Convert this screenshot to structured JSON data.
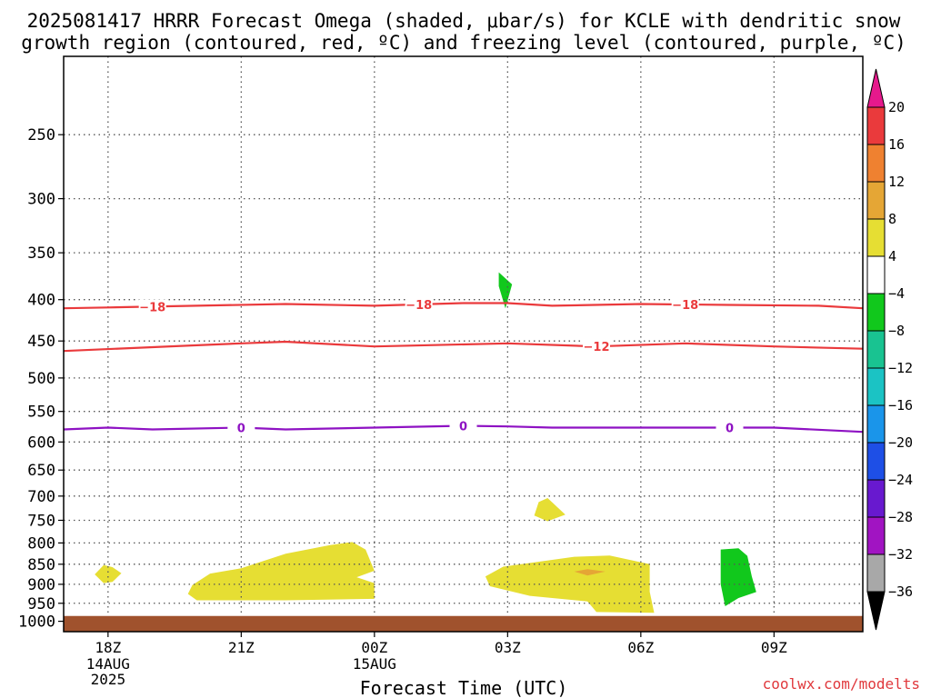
{
  "chart_data": {
    "type": "heatmap",
    "title_lines": [
      "2025081417 HRRR Forecast Omega (shaded, μbar/s) for KCLE with dendritic snow",
      "growth region (contoured, red, ºC) and freezing level (contoured, purple, ºC)"
    ],
    "xlabel": "Forecast Time (UTC)",
    "credit": "coolwx.com/modelts",
    "x_range_hours": [
      -1,
      17
    ],
    "y_range_hpa": [
      200,
      1030
    ],
    "y_ticks": [
      250,
      300,
      350,
      400,
      450,
      500,
      550,
      600,
      650,
      700,
      750,
      800,
      850,
      900,
      950,
      1000
    ],
    "x_ticks": [
      {
        "hour": 0,
        "label": "18Z",
        "sub": [
          "14AUG",
          "2025"
        ]
      },
      {
        "hour": 3,
        "label": "21Z",
        "sub": []
      },
      {
        "hour": 6,
        "label": "00Z",
        "sub": [
          "15AUG"
        ]
      },
      {
        "hour": 9,
        "label": "03Z",
        "sub": []
      },
      {
        "hour": 12,
        "label": "06Z",
        "sub": []
      },
      {
        "hour": 15,
        "label": "09Z",
        "sub": []
      }
    ],
    "grid": true,
    "ground_level_hpa": 985,
    "ground_color": "#a0522d",
    "colorbar": {
      "labels": [
        "20",
        "16",
        "12",
        "8",
        "4",
        "−4",
        "−8",
        "−12",
        "−16",
        "−20",
        "−24",
        "−28",
        "−32",
        "−36"
      ],
      "colors": [
        "#ea3a3c",
        "#ef8130",
        "#e5a635",
        "#e6de33",
        "#ffffff",
        "#11c81c",
        "#19c391",
        "#1bc3c4",
        "#1a95ea",
        "#1e4fe6",
        "#6819cf",
        "#a114c2",
        "#a8a8a8"
      ],
      "top_triangle_color": "#e6198c",
      "bottom_triangle_color": "#000000"
    },
    "contours": [
      {
        "label": "−18",
        "color": "#ea3a3c",
        "points": [
          [
            -1,
            410
          ],
          [
            0,
            409
          ],
          [
            2,
            407
          ],
          [
            4,
            405
          ],
          [
            6,
            407
          ],
          [
            8,
            404
          ],
          [
            9,
            404
          ],
          [
            10,
            407
          ],
          [
            12,
            405
          ],
          [
            14,
            406
          ],
          [
            16,
            407
          ],
          [
            17,
            410
          ]
        ],
        "label_hours": [
          1,
          7,
          13
        ]
      },
      {
        "label": "−12",
        "color": "#ea3a3c",
        "points": [
          [
            -1,
            463
          ],
          [
            1,
            458
          ],
          [
            3,
            453
          ],
          [
            4,
            451
          ],
          [
            6,
            457
          ],
          [
            9,
            453
          ],
          [
            11,
            457
          ],
          [
            13,
            453
          ],
          [
            15,
            457
          ],
          [
            17,
            460
          ]
        ],
        "label_hours": [
          11
        ]
      },
      {
        "label": "0",
        "color": "#8e12c3",
        "points": [
          [
            -1,
            579
          ],
          [
            0,
            576
          ],
          [
            1,
            579
          ],
          [
            3,
            576
          ],
          [
            4,
            579
          ],
          [
            6,
            576
          ],
          [
            8,
            573
          ],
          [
            9,
            574
          ],
          [
            10,
            576
          ],
          [
            12,
            576
          ],
          [
            15,
            576
          ],
          [
            17,
            583
          ]
        ],
        "label_hours": [
          3,
          8,
          14
        ]
      }
    ],
    "omega_regions": [
      {
        "value_range": [
          4,
          8
        ],
        "color": "#e6de33",
        "points": [
          [
            -0.3,
            875
          ],
          [
            -0.1,
            852
          ],
          [
            0.1,
            857
          ],
          [
            0.3,
            872
          ],
          [
            0.1,
            894
          ],
          [
            -0.1,
            897
          ]
        ]
      },
      {
        "value_range": [
          4,
          8
        ],
        "color": "#e6de33",
        "points": [
          [
            1.9,
            902
          ],
          [
            2.3,
            873
          ],
          [
            3,
            860
          ],
          [
            4,
            825
          ],
          [
            5,
            805
          ],
          [
            5.5,
            798
          ],
          [
            5.8,
            815
          ],
          [
            6,
            866
          ],
          [
            5.6,
            882
          ],
          [
            6,
            897
          ],
          [
            6,
            938
          ],
          [
            4,
            942
          ],
          [
            2,
            942
          ],
          [
            1.8,
            925
          ]
        ]
      },
      {
        "value_range": [
          4,
          8
        ],
        "color": "#e6de33",
        "points": [
          [
            9.6,
            740
          ],
          [
            9.7,
            712
          ],
          [
            9.9,
            704
          ],
          [
            10.3,
            738
          ],
          [
            9.9,
            752
          ]
        ]
      },
      {
        "value_range": [
          4,
          8
        ],
        "color": "#e6de33",
        "points": [
          [
            8.5,
            880
          ],
          [
            8.9,
            856
          ],
          [
            10.5,
            832
          ],
          [
            11.3,
            829
          ],
          [
            12.2,
            850
          ],
          [
            12.2,
            919
          ],
          [
            12.3,
            976
          ],
          [
            11,
            974
          ],
          [
            10.8,
            945
          ],
          [
            9.5,
            930
          ],
          [
            8.6,
            905
          ]
        ]
      },
      {
        "value_range": [
          8,
          12
        ],
        "color": "#e5a635",
        "points": [
          [
            10.5,
            868
          ],
          [
            10.8,
            862
          ],
          [
            11.2,
            868
          ],
          [
            10.8,
            878
          ]
        ]
      },
      {
        "value_range": [
          -8,
          -4
        ],
        "color": "#11c81c",
        "points": [
          [
            8.8,
            370
          ],
          [
            9.1,
            383
          ],
          [
            8.95,
            410
          ],
          [
            8.8,
            385
          ]
        ]
      },
      {
        "value_range": [
          -8,
          -4
        ],
        "color": "#11c81c",
        "points": [
          [
            13.8,
            815
          ],
          [
            14.2,
            812
          ],
          [
            14.4,
            830
          ],
          [
            14.5,
            880
          ],
          [
            14.6,
            920
          ],
          [
            14.2,
            936
          ],
          [
            13.9,
            958
          ],
          [
            13.8,
            900
          ]
        ]
      }
    ]
  }
}
